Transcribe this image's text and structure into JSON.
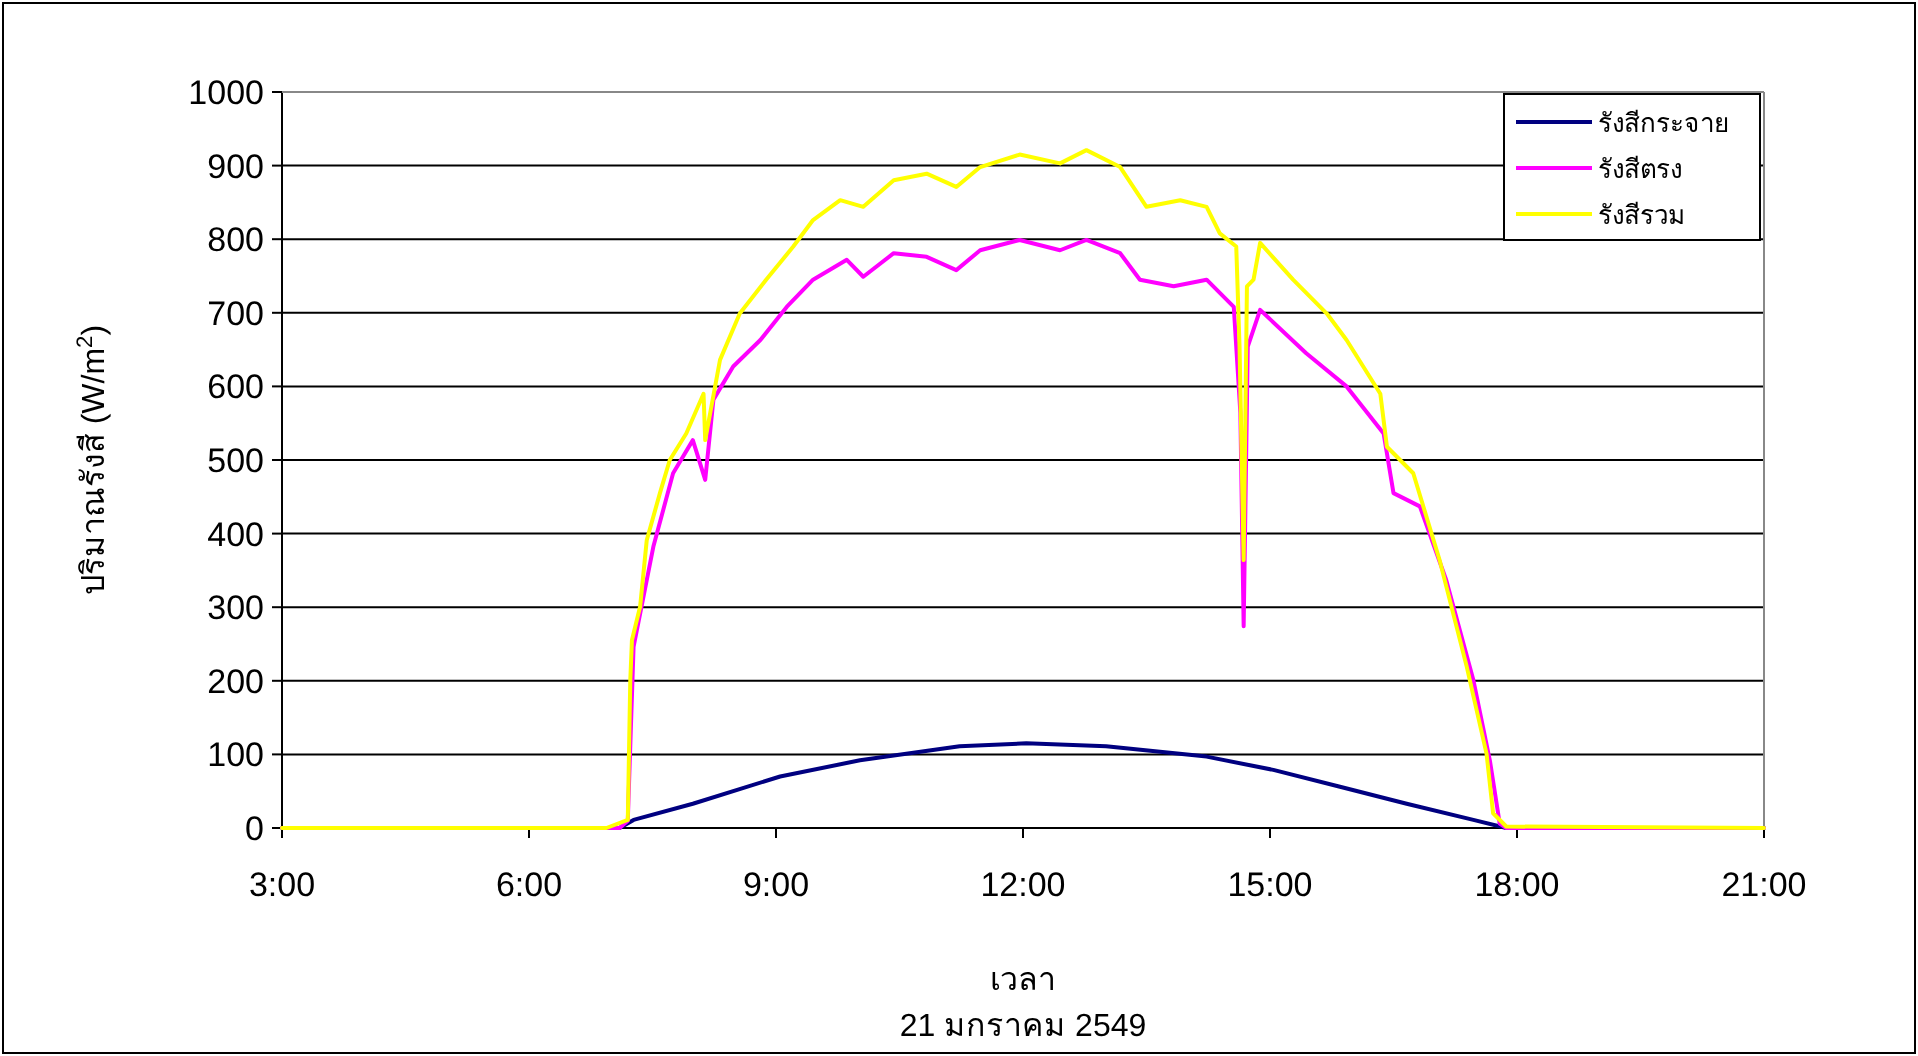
{
  "chart_data": {
    "type": "line",
    "xlabel": "เวลา",
    "ylabel": "ปริมาณรังสี (W/m$^{2}$)",
    "annotations": [
      "21 มกราคม 2549"
    ],
    "xlim": [
      3,
      21
    ],
    "xticks": [
      {
        "value": 3,
        "label": "3:00"
      },
      {
        "value": 6,
        "label": "6:00"
      },
      {
        "value": 9,
        "label": "9:00"
      },
      {
        "value": 12,
        "label": "12:00"
      },
      {
        "value": 15,
        "label": "15:00"
      },
      {
        "value": 18,
        "label": "18:00"
      },
      {
        "value": 21,
        "label": "21:00"
      }
    ],
    "ylim": [
      0,
      1000
    ],
    "yticks": [
      0,
      100,
      200,
      300,
      400,
      500,
      600,
      700,
      800,
      900,
      1000
    ],
    "grid": "y",
    "legend": "top right",
    "marker": "none",
    "line_style": "solid",
    "series": [
      {
        "name": "รังสีกระจาย",
        "color": "#000080",
        "x": [
          3,
          7.1,
          7.27,
          7.99,
          9.05,
          10.02,
          11.23,
          12.04,
          13.01,
          14.23,
          15.04,
          15.85,
          16.66,
          17.47,
          17.87,
          21
        ],
        "values": [
          0,
          0,
          11,
          33,
          70,
          92,
          111,
          115,
          111,
          97,
          79,
          56,
          33,
          11,
          0,
          0
        ]
      },
      {
        "name": "รังสีตรง",
        "color": "#ff00ff",
        "x": [
          3,
          7.1,
          7.2,
          7.27,
          7.51,
          7.75,
          7.99,
          8.14,
          8.24,
          8.48,
          8.81,
          9.13,
          9.45,
          9.86,
          10.06,
          10.43,
          10.83,
          11.19,
          11.48,
          11.96,
          12.45,
          12.77,
          13.18,
          13.42,
          13.83,
          14.23,
          14.56,
          14.64,
          14.68,
          14.73,
          14.88,
          15.44,
          15.93,
          16.38,
          16.5,
          16.82,
          17.14,
          17.47,
          17.67,
          17.79,
          17.87,
          21
        ],
        "values": [
          0,
          0,
          10,
          246,
          382,
          482,
          527,
          473,
          582,
          627,
          663,
          708,
          745,
          772,
          749,
          781,
          776,
          758,
          785,
          799,
          785,
          799,
          781,
          745,
          736,
          745,
          708,
          564,
          274,
          654,
          704,
          645,
          600,
          536,
          455,
          437,
          337,
          201,
          92,
          6,
          0,
          0
        ]
      },
      {
        "name": "รังสีรวม",
        "color": "#ffff00",
        "x": [
          3,
          6.94,
          7.2,
          7.23,
          7.25,
          7.35,
          7.43,
          7.59,
          7.71,
          7.91,
          8.12,
          8.14,
          8.32,
          8.56,
          8.88,
          9.21,
          9.45,
          9.78,
          10.06,
          10.43,
          10.83,
          11.19,
          11.48,
          11.96,
          12.45,
          12.77,
          13.18,
          13.5,
          13.91,
          14.23,
          14.39,
          14.59,
          14.63,
          14.68,
          14.72,
          14.8,
          14.88,
          15.28,
          15.69,
          15.93,
          16.34,
          16.42,
          16.74,
          17.06,
          17.39,
          17.63,
          17.71,
          17.87,
          21
        ],
        "values": [
          0,
          0,
          11,
          200,
          255,
          301,
          391,
          455,
          500,
          536,
          590,
          527,
          636,
          699,
          745,
          790,
          826,
          853,
          844,
          880,
          889,
          871,
          898,
          915,
          903,
          921,
          898,
          844,
          853,
          844,
          808,
          790,
          654,
          364,
          736,
          745,
          795,
          745,
          699,
          663,
          590,
          518,
          482,
          364,
          219,
          101,
          20,
          2,
          0
        ]
      }
    ]
  }
}
